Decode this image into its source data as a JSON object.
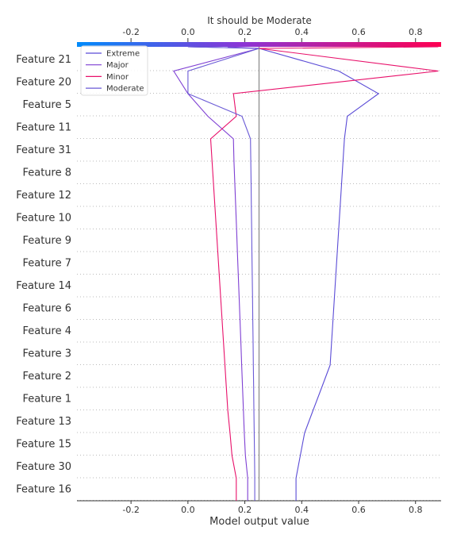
{
  "chart_data": {
    "type": "line",
    "title": "It should be Moderate",
    "xlabel": "Model output value",
    "xlim": [
      -0.39,
      0.89
    ],
    "xticks": [
      "-0.2",
      "0.0",
      "0.2",
      "0.4",
      "0.6",
      "0.8"
    ],
    "xtick_values": [
      -0.2,
      0.0,
      0.2,
      0.4,
      0.6,
      0.8
    ],
    "base_value": 0.25,
    "features": [
      "Feature 21",
      "Feature 20",
      "Feature 5",
      "Feature 11",
      "Feature 31",
      "Feature 8",
      "Feature 12",
      "Feature 10",
      "Feature 9",
      "Feature 7",
      "Feature 14",
      "Feature 6",
      "Feature 4",
      "Feature 3",
      "Feature 2",
      "Feature 1",
      "Feature 13",
      "Feature 15",
      "Feature 30",
      "Feature 16"
    ],
    "grid": "horizontal dotted",
    "legend_position": "top-left",
    "colorbar": {
      "from": "#008bfb",
      "mid": "#8a35d6",
      "to": "#ff0051"
    },
    "series": [
      {
        "name": "Extreme",
        "color": "#5a4bd6",
        "x": [
          0.25,
          0.53,
          0.67,
          0.56,
          0.55,
          0.545,
          0.54,
          0.535,
          0.53,
          0.525,
          0.52,
          0.515,
          0.51,
          0.505,
          0.5,
          0.47,
          0.44,
          0.41,
          0.395,
          0.38
        ],
        "top": 0.0
      },
      {
        "name": "Major",
        "color": "#7e3fd3",
        "x": [
          0.25,
          -0.05,
          0.0,
          0.07,
          0.16,
          0.162,
          0.165,
          0.168,
          0.171,
          0.174,
          0.177,
          0.18,
          0.183,
          0.186,
          0.189,
          0.192,
          0.195,
          0.198,
          0.202,
          0.21
        ],
        "top": 0.14
      },
      {
        "name": "Minor",
        "color": "#e8106a",
        "x": [
          0.25,
          0.88,
          0.16,
          0.17,
          0.08,
          0.085,
          0.09,
          0.095,
          0.1,
          0.105,
          0.11,
          0.115,
          0.12,
          0.125,
          0.13,
          0.135,
          0.14,
          0.148,
          0.155,
          0.17
        ],
        "top": 0.88
      },
      {
        "name": "Moderate",
        "color": "#6a5ad6",
        "x": [
          0.25,
          0.0,
          0.0,
          0.19,
          0.22,
          0.221,
          0.222,
          0.223,
          0.224,
          0.225,
          0.226,
          0.227,
          0.228,
          0.229,
          0.23,
          0.231,
          0.232,
          0.233,
          0.234,
          0.235
        ],
        "top": 0.0
      }
    ]
  }
}
